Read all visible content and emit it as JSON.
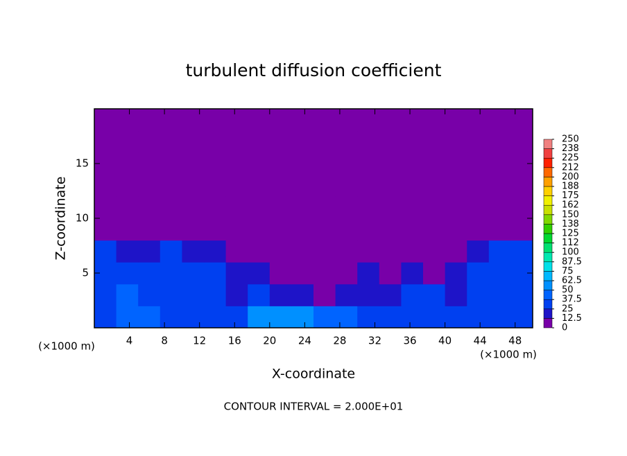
{
  "chart_data": {
    "type": "heatmap",
    "title": "turbulent diffusion coefficient",
    "x_label": "X-coordinate",
    "y_label": "Z-coordinate",
    "x_unit": "(×1000 m)",
    "y_unit": "(×1000 m)",
    "footer": "CONTOUR INTERVAL = 2.000E+01",
    "xlim": [
      0,
      50
    ],
    "ylim": [
      0,
      20
    ],
    "xticks": [
      4,
      8,
      12,
      16,
      20,
      24,
      28,
      32,
      36,
      40,
      44,
      48
    ],
    "yticks": [
      5,
      10,
      15
    ],
    "z": [
      [
        30,
        45,
        40,
        35,
        30,
        25,
        35,
        50,
        60,
        55,
        45,
        40,
        30,
        35,
        30,
        30,
        28,
        25,
        30,
        30
      ],
      [
        35,
        40,
        30,
        25,
        30,
        25,
        20,
        25,
        15,
        15,
        10,
        15,
        20,
        15,
        25,
        25,
        20,
        25,
        30,
        30
      ],
      [
        30,
        30,
        35,
        30,
        25,
        25,
        15,
        15,
        10,
        10,
        5,
        10,
        15,
        10,
        15,
        5,
        20,
        30,
        35,
        30
      ],
      [
        25,
        20,
        20,
        25,
        20,
        15,
        10,
        5,
        5,
        5,
        0,
        0,
        0,
        0,
        0,
        0,
        5,
        20,
        30,
        30
      ],
      [
        0,
        0,
        0,
        5,
        5,
        5,
        0,
        0,
        0,
        0,
        0,
        0,
        0,
        0,
        0,
        0,
        0,
        0,
        0,
        0
      ],
      [
        0,
        0,
        0,
        0,
        0,
        0,
        0,
        0,
        0,
        0,
        0,
        0,
        0,
        0,
        0,
        0,
        0,
        0,
        0,
        0
      ],
      [
        0,
        0,
        0,
        0,
        0,
        0,
        0,
        0,
        0,
        0,
        0,
        0,
        0,
        0,
        0,
        0,
        0,
        0,
        0,
        0
      ],
      [
        0,
        0,
        0,
        0,
        0,
        0,
        0,
        0,
        0,
        0,
        0,
        0,
        0,
        0,
        0,
        0,
        0,
        0,
        0,
        0
      ],
      [
        0,
        0,
        0,
        0,
        0,
        0,
        0,
        0,
        0,
        0,
        0,
        0,
        0,
        0,
        0,
        0,
        0,
        0,
        0,
        0
      ],
      [
        0,
        0,
        0,
        0,
        0,
        0,
        0,
        0,
        0,
        0,
        0,
        0,
        0,
        0,
        0,
        0,
        0,
        0,
        0,
        0
      ]
    ],
    "levels": [
      0,
      12.5,
      25,
      37.5,
      50,
      62.5,
      75,
      87.5,
      100,
      {
        "value": 112.5,
        "label": "112"
      },
      125,
      {
        "value": 137.5,
        "label": "138"
      },
      150,
      {
        "value": 162.5,
        "label": "162"
      },
      175,
      {
        "value": 187.5,
        "label": "188"
      },
      200,
      {
        "value": 212.5,
        "label": "212"
      },
      225,
      {
        "value": 237.5,
        "label": "238"
      },
      250
    ],
    "colors": [
      "#7800a8",
      "#1e14c8",
      "#0040f0",
      "#0064ff",
      "#0090ff",
      "#00b8ff",
      "#00e0e8",
      "#00e8b0",
      "#00e070",
      "#00d830",
      "#30d000",
      "#80d800",
      "#c8e000",
      "#f0f000",
      "#ffd000",
      "#ffa000",
      "#ff6800",
      "#ff2000",
      "#f04040",
      "#f08080"
    ]
  }
}
